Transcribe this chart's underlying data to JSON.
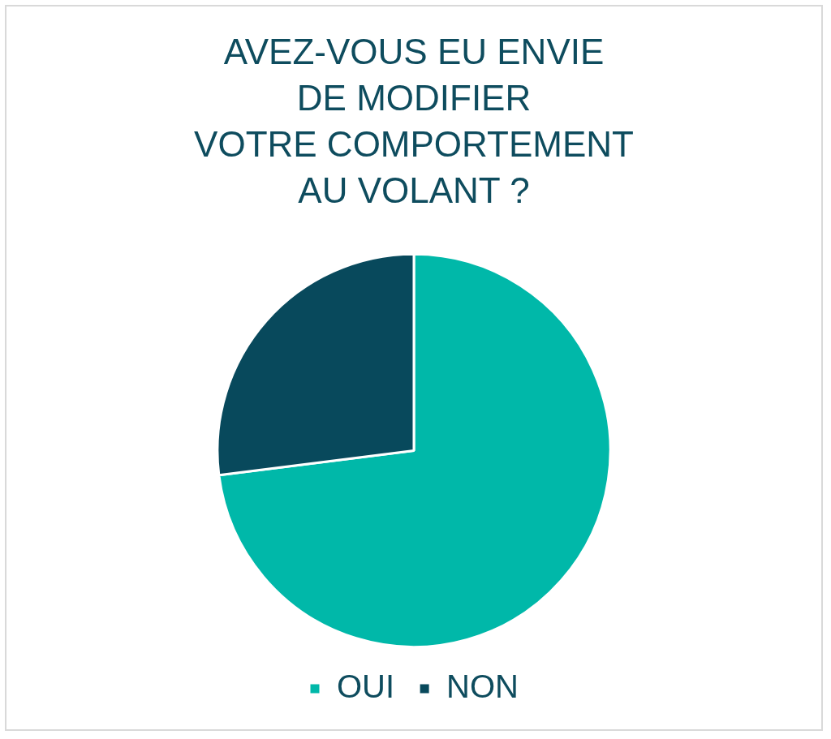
{
  "chart_data": {
    "type": "pie",
    "title": "AVEZ-VOUS EU ENVIE\nDE MODIFIER\nVOTRE COMPORTEMENT\nAU VOLANT ?",
    "categories": [
      "OUI",
      "NON"
    ],
    "values": [
      73,
      27
    ],
    "colors": [
      "#00b8a9",
      "#08495c"
    ],
    "legend": "bottom"
  }
}
